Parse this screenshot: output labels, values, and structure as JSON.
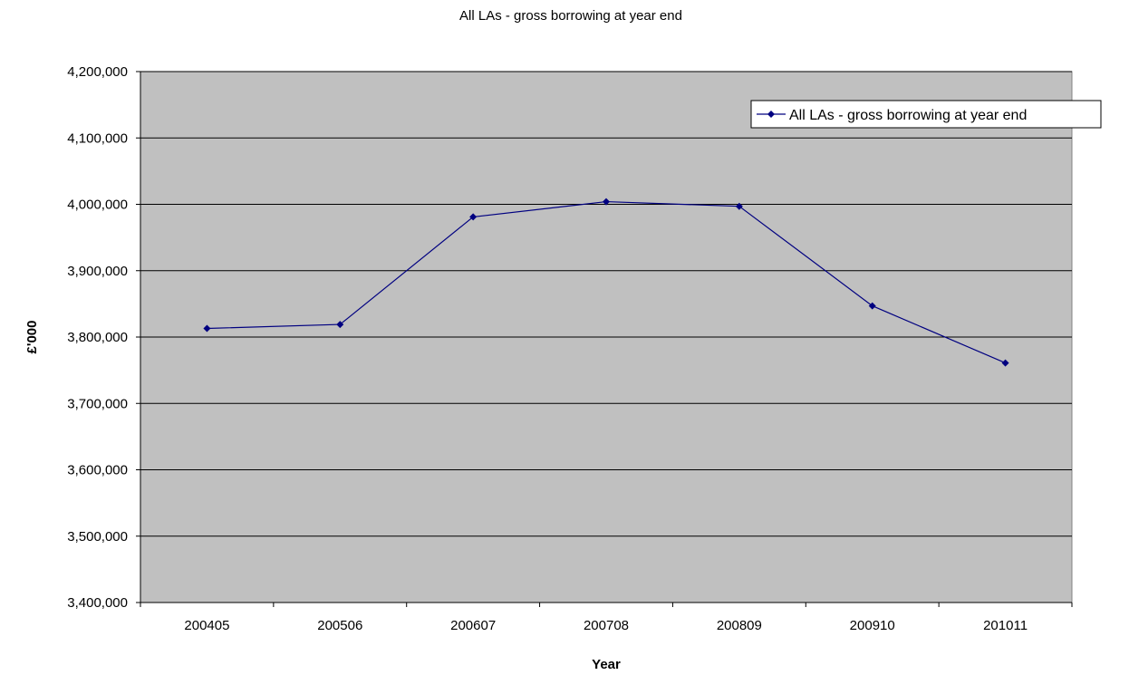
{
  "chart_data": {
    "type": "line",
    "title": "All LAs - gross borrowing at year end",
    "xlabel": "Year",
    "ylabel": "£'000",
    "categories": [
      "200405",
      "200506",
      "200607",
      "200708",
      "200809",
      "200910",
      "201011"
    ],
    "series": [
      {
        "name": "All LAs - gross borrowing at year end",
        "values": [
          3813000,
          3819000,
          3981000,
          4004000,
          3997000,
          3847000,
          3761000
        ]
      }
    ],
    "ylim": [
      3400000,
      4200000
    ],
    "ytick_step": 100000,
    "yticks": [
      "3,400,000",
      "3,500,000",
      "3,600,000",
      "3,700,000",
      "3,800,000",
      "3,900,000",
      "4,000,000",
      "4,100,000",
      "4,200,000"
    ],
    "grid": true,
    "legend_position": "top-right",
    "colors": {
      "plot_background": "#c0c0c0",
      "series_line": "#000080",
      "gridline": "#000000"
    }
  }
}
